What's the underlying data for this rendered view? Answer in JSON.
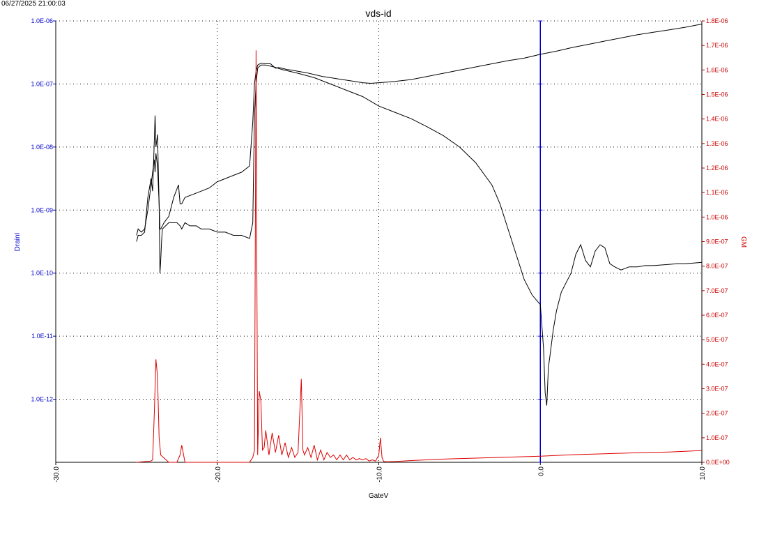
{
  "timestamp": "06/27/2025 21:00:03",
  "colors": {
    "left_axis": "#0000cc",
    "right_axis": "#cc0000",
    "series_black": "#000000",
    "series_red": "#dd0000",
    "marker": "#0000cc",
    "grid": "#000000"
  },
  "chart_data": {
    "type": "line",
    "title": "vds-id",
    "xlabel": "GateV",
    "ylabel": "DrainI",
    "y2label": "GM",
    "xlim": [
      -30,
      10
    ],
    "ylim": [
      -13,
      -6
    ],
    "y_scale": "log",
    "y2lim": [
      0,
      1.8e-06
    ],
    "grid": true,
    "x_ticks": [
      "-30.0",
      "-20.0",
      "-10.0",
      "0.0",
      "10.0"
    ],
    "y_ticks": [
      "1.0E-06",
      "1.0E-07",
      "1.0E-08",
      "1.0E-09",
      "1.0E-10",
      "1.0E-11",
      "1.0E-12"
    ],
    "y2_ticks": [
      "1.8E-06",
      "1.7E-06",
      "1.6E-06",
      "1.5E-06",
      "1.4E-06",
      "1.3E-06",
      "1.2E-06",
      "1.1E-06",
      "1.0E-06",
      "9.0E-07",
      "8.0E-07",
      "7.0E-07",
      "6.0E-07",
      "5.0E-07",
      "4.0E-07",
      "3.0E-07",
      "2.0E-07",
      "1.0E-07",
      "0.0E+00"
    ],
    "vertical_marker_x": 0.0,
    "series": [
      {
        "color": "#000000",
        "axis": "left",
        "x": [
          -25,
          -24.9,
          -24.7,
          -24.5,
          -24.3,
          -24.1,
          -24.0,
          -23.9,
          -23.85,
          -23.8,
          -23.7,
          -23.6,
          -23.55,
          -23.5,
          -23.4,
          -23.3,
          -23.0,
          -22.7,
          -22.4,
          -22.3,
          -22.2,
          -22.1,
          -22.0,
          -21.5,
          -21.0,
          -20.5,
          -20.0,
          -19.5,
          -19.0,
          -18.5,
          -18.0,
          -17.8,
          -17.7,
          -17.6,
          -17.5,
          -17.3,
          -17.0,
          -16.7,
          -16.4,
          -16.2,
          -16.0,
          -15.7,
          -15.4,
          -15.0,
          -14.5,
          -14.0,
          -13.5,
          -13.0,
          -12.5,
          -12.0,
          -11.5,
          -11.0,
          -10.5,
          -10.0,
          -9.5,
          -9.0,
          -8.0,
          -7.0,
          -6.0,
          -5.0,
          -4.0,
          -3.0,
          -2.0,
          -1.0,
          0.0,
          1.0,
          2.0,
          3.0,
          4.0,
          5.0,
          6.0,
          7.0,
          8.0,
          9.0,
          10.0
        ],
        "y": [
          -9.4,
          -9.3,
          -9.35,
          -9.3,
          -9.0,
          -8.6,
          -8.4,
          -8.2,
          -8.4,
          -8.1,
          -8.3,
          -8.9,
          -9.3,
          -9.3,
          -9.25,
          -9.2,
          -9.1,
          -8.8,
          -8.6,
          -8.9,
          -8.9,
          -8.85,
          -8.8,
          -8.75,
          -8.7,
          -8.65,
          -8.55,
          -8.5,
          -8.45,
          -8.4,
          -8.3,
          -7.6,
          -7.0,
          -6.8,
          -6.7,
          -6.67,
          -6.68,
          -6.68,
          -6.75,
          -6.74,
          -6.75,
          -6.77,
          -6.78,
          -6.8,
          -6.82,
          -6.85,
          -6.88,
          -6.9,
          -6.92,
          -6.94,
          -6.96,
          -6.98,
          -6.99,
          -6.98,
          -6.97,
          -6.96,
          -6.93,
          -6.88,
          -6.83,
          -6.78,
          -6.73,
          -6.68,
          -6.63,
          -6.59,
          -6.53,
          -6.48,
          -6.42,
          -6.37,
          -6.32,
          -6.27,
          -6.22,
          -6.18,
          -6.14,
          -6.1,
          -6.05
        ]
      },
      {
        "color": "#000000",
        "axis": "left",
        "x": [
          -25,
          -24.9,
          -24.7,
          -24.5,
          -24.3,
          -24.1,
          -24.0,
          -23.9,
          -23.85,
          -23.8,
          -23.7,
          -23.6,
          -23.55,
          -23.5,
          -23.45,
          -23.4,
          -23.0,
          -22.7,
          -22.5,
          -22.3,
          -22.2,
          -22.0,
          -21.7,
          -21.3,
          -21.0,
          -20.5,
          -20.0,
          -19.5,
          -19.0,
          -18.5,
          -18.0,
          -17.8,
          -17.7,
          -17.6,
          -17.5,
          -17.3,
          -17.0,
          -16.5,
          -16.0,
          -15.0,
          -14.0,
          -13.0,
          -12.0,
          -11.0,
          -10.0,
          -9.0,
          -8.0,
          -7.0,
          -6.0,
          -5.0,
          -4.0,
          -3.0,
          -2.5,
          -2.0,
          -1.5,
          -1.0,
          -0.5,
          0.0,
          0.2,
          0.3,
          0.4,
          0.5,
          0.6,
          0.8,
          1.0,
          1.3,
          1.6,
          1.9,
          2.2,
          2.5,
          2.8,
          3.1,
          3.4,
          3.7,
          4.0,
          4.3,
          4.6,
          5.0,
          5.5,
          6.0,
          6.5,
          7.0,
          7.5,
          8.0,
          8.5,
          9.0,
          9.5,
          10.0
        ],
        "y": [
          -9.5,
          -9.4,
          -9.4,
          -9.35,
          -8.8,
          -8.5,
          -8.7,
          -7.9,
          -7.5,
          -8.0,
          -7.8,
          -8.9,
          -10.0,
          -9.8,
          -9.5,
          -9.3,
          -9.2,
          -9.2,
          -9.2,
          -9.25,
          -9.3,
          -9.2,
          -9.25,
          -9.25,
          -9.3,
          -9.3,
          -9.35,
          -9.35,
          -9.4,
          -9.4,
          -9.45,
          -9.2,
          -7.5,
          -7.0,
          -6.75,
          -6.7,
          -6.7,
          -6.73,
          -6.77,
          -6.83,
          -6.9,
          -7.0,
          -7.1,
          -7.2,
          -7.35,
          -7.45,
          -7.55,
          -7.68,
          -7.82,
          -8.0,
          -8.25,
          -8.6,
          -8.9,
          -9.3,
          -9.7,
          -10.1,
          -10.35,
          -10.5,
          -11.2,
          -11.9,
          -12.1,
          -11.5,
          -11.3,
          -10.9,
          -10.6,
          -10.3,
          -10.15,
          -10.0,
          -9.7,
          -9.55,
          -9.8,
          -9.9,
          -9.65,
          -9.55,
          -9.6,
          -9.85,
          -9.9,
          -9.95,
          -9.9,
          -9.9,
          -9.88,
          -9.88,
          -9.87,
          -9.86,
          -9.85,
          -9.85,
          -9.84,
          -9.83
        ]
      },
      {
        "color": "#dd0000",
        "axis": "right",
        "x": [
          -25,
          -24.1,
          -24.0,
          -23.9,
          -23.8,
          -23.7,
          -23.6,
          -23.5,
          -23.0,
          -22.5,
          -22.3,
          -22.2,
          -22.0,
          -21.0,
          -20.0,
          -19.0,
          -18.0,
          -17.8,
          -17.7,
          -17.6,
          -17.55,
          -17.5,
          -17.4,
          -17.3,
          -17.2,
          -17.1,
          -17.0,
          -16.8,
          -16.6,
          -16.4,
          -16.2,
          -16.0,
          -15.8,
          -15.6,
          -15.4,
          -15.2,
          -15.0,
          -14.8,
          -14.7,
          -14.6,
          -14.4,
          -14.2,
          -14.0,
          -13.8,
          -13.6,
          -13.4,
          -13.2,
          -13.0,
          -12.8,
          -12.6,
          -12.4,
          -12.2,
          -12.0,
          -11.8,
          -11.6,
          -11.4,
          -11.2,
          -11.0,
          -10.8,
          -10.6,
          -10.4,
          -10.2,
          -10.0,
          -9.9,
          -9.8,
          -9.7,
          -9.5,
          -9.0,
          -8.0,
          -6.0,
          -4.0,
          -2.0,
          0.0,
          2.0,
          4.0,
          6.0,
          8.0,
          10.0
        ],
        "y": [
          0,
          5e-09,
          1e-08,
          2e-07,
          4.2e-07,
          3.5e-07,
          1e-07,
          3e-08,
          0,
          0,
          3e-08,
          7e-08,
          0,
          0,
          0,
          0,
          0,
          2e-08,
          5e-08,
          1.68e-06,
          8e-07,
          3e-08,
          2.9e-07,
          2.5e-07,
          5e-08,
          6e-08,
          1.3e-07,
          3e-08,
          1.2e-07,
          4e-08,
          1.1e-07,
          3e-08,
          8e-08,
          2e-08,
          6e-08,
          2e-08,
          4e-08,
          3.4e-07,
          5e-08,
          3e-08,
          6e-08,
          2e-08,
          7e-08,
          1e-08,
          5e-08,
          1e-08,
          4e-08,
          2e-08,
          3e-08,
          1e-08,
          3e-08,
          1e-08,
          3e-08,
          1e-08,
          2e-08,
          1e-08,
          1.5e-08,
          1e-08,
          1.5e-08,
          5e-09,
          1e-08,
          5e-09,
          3e-08,
          1e-07,
          2e-08,
          3e-09,
          2e-09,
          3e-09,
          7e-09,
          1.3e-08,
          1.7e-08,
          2.1e-08,
          2.5e-08,
          3.1e-08,
          3.5e-08,
          3.9e-08,
          4.2e-08,
          4.8e-08
        ]
      }
    ]
  }
}
